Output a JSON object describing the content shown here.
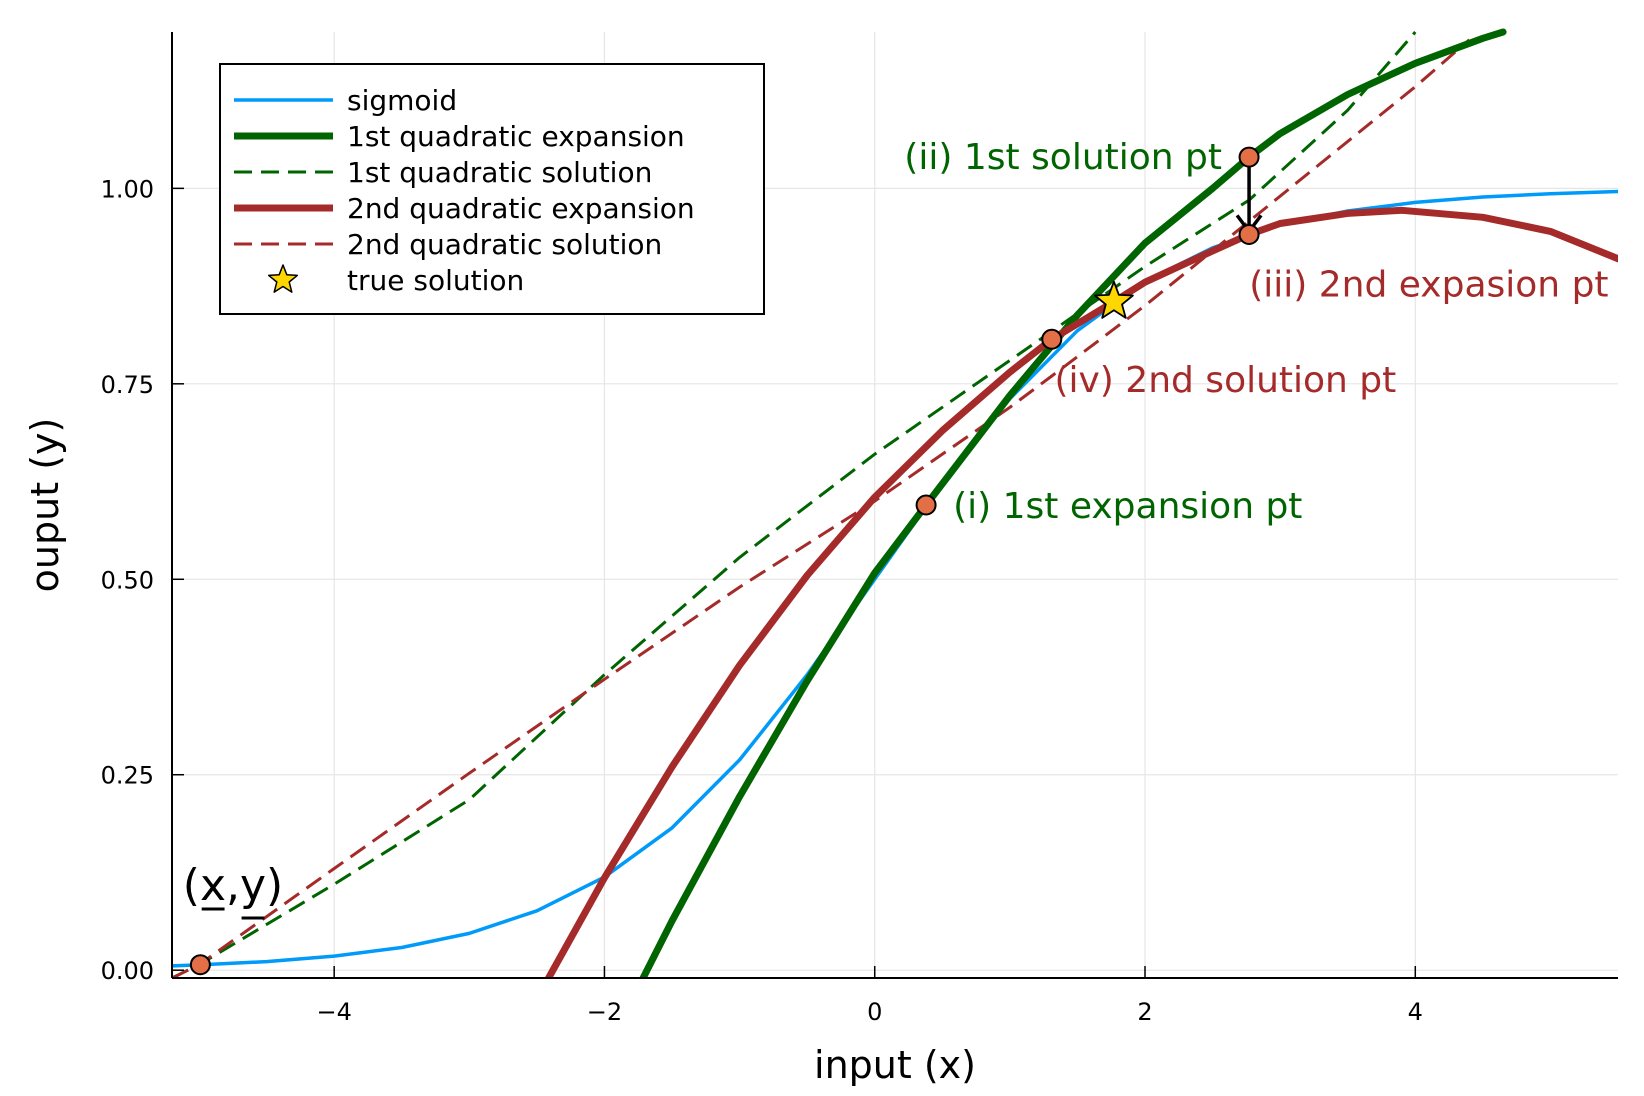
{
  "chart_data": {
    "type": "line",
    "xlabel": "input (x)",
    "ylabel": "ouput (y)",
    "xlim": [
      -5.2,
      5.5
    ],
    "ylim": [
      -0.01,
      1.2
    ],
    "xticks": [
      -4,
      -2,
      0,
      2,
      4
    ],
    "xtick_labels": [
      "−4",
      "−2",
      "0",
      "2",
      "4"
    ],
    "yticks": [
      0.0,
      0.25,
      0.5,
      0.75,
      1.0
    ],
    "ytick_labels": [
      "0.00",
      "0.25",
      "0.50",
      "0.75",
      "1.00"
    ],
    "grid": true,
    "legend_position": "top-left",
    "series": [
      {
        "name": "sigmoid",
        "style": "solid",
        "color": "#009af9",
        "x": [
          -5.2,
          -5.0,
          -4.5,
          -4.0,
          -3.5,
          -3.0,
          -2.5,
          -2.0,
          -1.5,
          -1.0,
          -0.5,
          0.0,
          0.5,
          1.0,
          1.5,
          2.0,
          2.5,
          3.0,
          3.5,
          4.0,
          4.5,
          5.0,
          5.5
        ],
        "y": [
          0.0055,
          0.0067,
          0.011,
          0.018,
          0.029,
          0.047,
          0.076,
          0.119,
          0.182,
          0.269,
          0.378,
          0.5,
          0.622,
          0.731,
          0.818,
          0.881,
          0.924,
          0.953,
          0.971,
          0.982,
          0.989,
          0.993,
          0.996
        ]
      },
      {
        "name": "1st quadratic expansion",
        "style": "thick",
        "color": "#006400",
        "x": [
          -1.72,
          -1.5,
          -1.0,
          -0.5,
          0.0,
          0.38,
          1.0,
          1.5,
          2.0,
          2.5,
          2.77,
          3.0,
          3.5,
          4.0,
          4.5,
          4.65
        ],
        "y": [
          -0.012,
          0.063,
          0.222,
          0.37,
          0.508,
          0.595,
          0.735,
          0.838,
          0.93,
          1.0,
          1.04,
          1.07,
          1.12,
          1.16,
          1.192,
          1.2
        ]
      },
      {
        "name": "1st quadratic solution",
        "style": "dashed",
        "color": "#006400",
        "x": [
          -5.2,
          -5.0,
          -4.0,
          -3.0,
          -2.0,
          -1.0,
          0.0,
          1.0,
          2.0,
          2.77,
          3.5,
          4.0
        ],
        "y": [
          -0.01,
          0.007,
          0.11,
          0.218,
          0.378,
          0.528,
          0.66,
          0.78,
          0.9,
          0.985,
          1.1,
          1.2
        ]
      },
      {
        "name": "2nd quadratic expansion",
        "style": "thick",
        "color": "#a52a2a",
        "x": [
          -2.42,
          -2.0,
          -1.5,
          -1.0,
          -0.5,
          0.0,
          0.5,
          1.0,
          1.31,
          1.77,
          2.0,
          2.5,
          2.77,
          3.0,
          3.5,
          3.9,
          4.5,
          5.0,
          5.5
        ],
        "y": [
          -0.012,
          0.118,
          0.26,
          0.39,
          0.505,
          0.605,
          0.69,
          0.765,
          0.807,
          0.855,
          0.88,
          0.92,
          0.941,
          0.955,
          0.968,
          0.972,
          0.963,
          0.945,
          0.91
        ]
      },
      {
        "name": "2nd quadratic solution",
        "style": "dashed",
        "color": "#a52a2a",
        "x": [
          -5.2,
          -5.0,
          -4.0,
          -3.0,
          -2.0,
          -1.0,
          0.0,
          1.0,
          1.31,
          2.0,
          3.0,
          4.0,
          4.4
        ],
        "y": [
          -0.01,
          0.007,
          0.13,
          0.252,
          0.372,
          0.49,
          0.6,
          0.72,
          0.76,
          0.85,
          0.99,
          1.13,
          1.19
        ]
      }
    ],
    "points": [
      {
        "name": "true solution",
        "x": 1.77,
        "y": 0.855,
        "marker": "star",
        "color": "#ffd700"
      },
      {
        "x": -4.99,
        "y": 0.007,
        "marker": "circle",
        "color": "#e26f46"
      },
      {
        "x": 0.38,
        "y": 0.595,
        "marker": "circle",
        "color": "#e26f46"
      },
      {
        "x": 2.77,
        "y": 1.04,
        "marker": "circle",
        "color": "#e26f46"
      },
      {
        "x": 2.77,
        "y": 0.941,
        "marker": "circle",
        "color": "#e26f46"
      },
      {
        "x": 1.31,
        "y": 0.807,
        "marker": "circle",
        "color": "#e26f46"
      }
    ],
    "arrow": {
      "x": 2.77,
      "y_from": 1.04,
      "y_to": 0.945
    },
    "annotations": [
      {
        "text": "(i) 1st expansion pt",
        "x": 0.58,
        "y": 0.594,
        "anchor": "start",
        "color": "#006400"
      },
      {
        "text": "(ii) 1st solution pt",
        "x": 2.57,
        "y": 1.04,
        "anchor": "end",
        "color": "#006400"
      },
      {
        "text": "(iii) 2nd expasion pt",
        "x": 5.43,
        "y": 0.877,
        "anchor": "end",
        "color": "#a52a2a"
      },
      {
        "text": "(iv) 2nd solution pt",
        "x": 1.33,
        "y": 0.755,
        "anchor": "start",
        "color": "#a52a2a"
      },
      {
        "text": "(x̲,y̲)",
        "x": -5.12,
        "y": 0.09,
        "anchor": "start",
        "color": "#000000"
      }
    ]
  }
}
